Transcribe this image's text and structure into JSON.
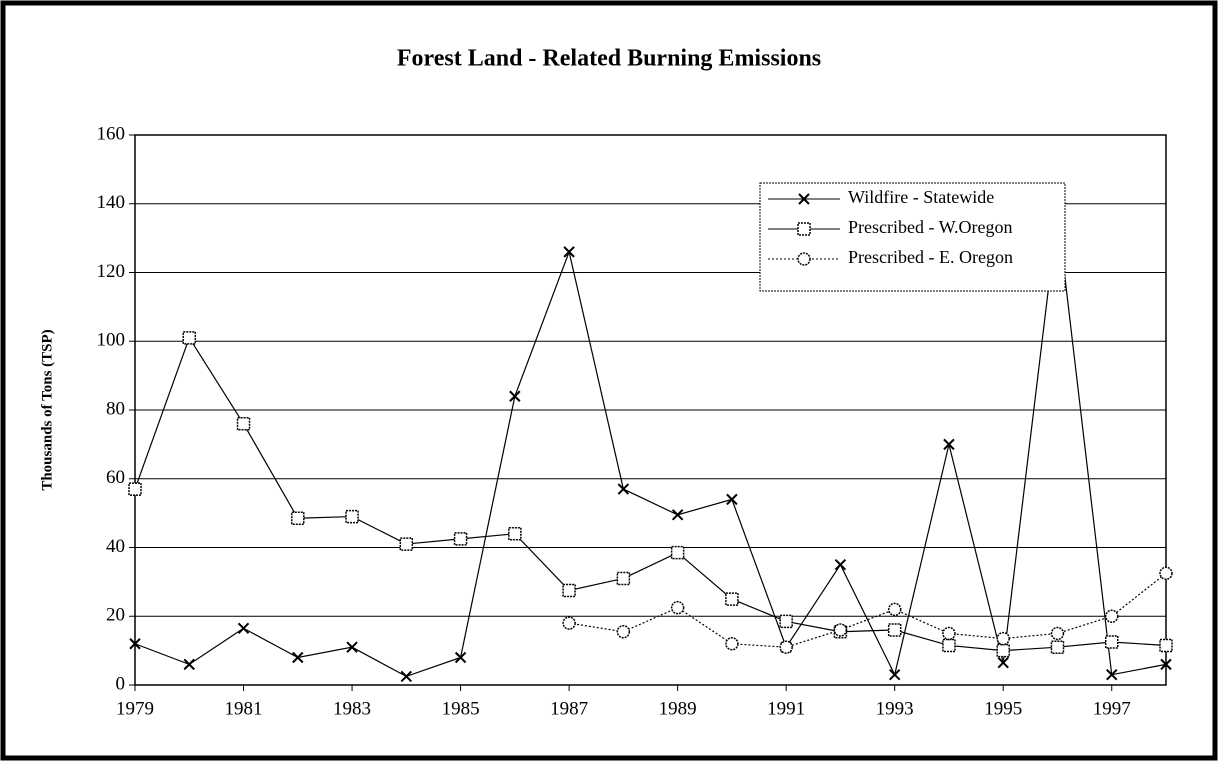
{
  "chart_data": {
    "type": "line",
    "title": "Forest Land - Related Burning Emissions",
    "ylabel": "Thousands of Tons (TSP)",
    "x": [
      1979,
      1980,
      1981,
      1982,
      1983,
      1984,
      1985,
      1986,
      1987,
      1988,
      1989,
      1990,
      1991,
      1992,
      1993,
      1994,
      1995,
      1996,
      1997,
      1998
    ],
    "series": [
      {
        "name": "Wildfire - Statewide",
        "color": "#000000",
        "marker": "x",
        "dash": "solid",
        "values": [
          12,
          6,
          16.5,
          8,
          11,
          2.5,
          8,
          84,
          126,
          57,
          49.5,
          54,
          11,
          35,
          3,
          70,
          6.5,
          137,
          3,
          6
        ]
      },
      {
        "name": "Prescribed - W.Oregon",
        "color": "#000000",
        "marker": "square",
        "dash": "solid",
        "values": [
          57,
          101,
          76,
          48.5,
          49,
          41,
          42.5,
          44,
          27.5,
          31,
          38.5,
          25,
          18.5,
          15.5,
          16,
          11.5,
          10,
          11,
          12.5,
          11.5
        ]
      },
      {
        "name": "Prescribed - E. Oregon",
        "color": "#000000",
        "marker": "circle",
        "dash": "dotted",
        "values": [
          null,
          null,
          null,
          null,
          null,
          null,
          null,
          null,
          18,
          15.5,
          22.5,
          12,
          11,
          16,
          22,
          15,
          13.5,
          15,
          20,
          32.5
        ]
      }
    ],
    "xlim": [
      1979,
      1998
    ],
    "xticks": [
      1979,
      1981,
      1983,
      1985,
      1987,
      1989,
      1991,
      1993,
      1995,
      1997
    ],
    "ylim": [
      0,
      160
    ],
    "yticks": [
      0,
      20,
      40,
      60,
      80,
      100,
      120,
      140,
      160
    ],
    "grid": true,
    "legend": "upper right"
  }
}
